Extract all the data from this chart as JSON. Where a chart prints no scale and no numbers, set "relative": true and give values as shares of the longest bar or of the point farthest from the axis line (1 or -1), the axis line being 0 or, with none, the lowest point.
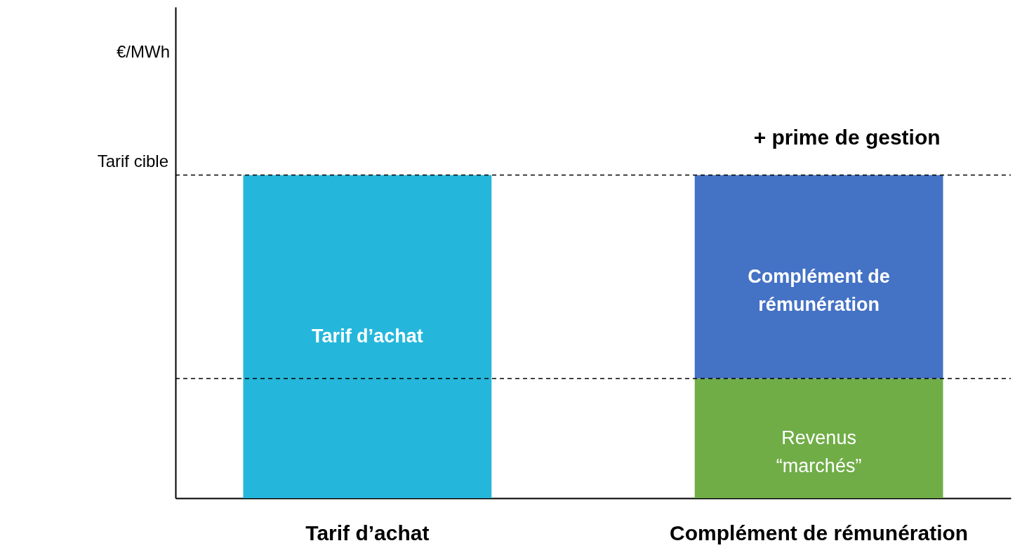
{
  "chart_data": {
    "type": "bar",
    "stacked": true,
    "relative": true,
    "categories": [
      "Tarif d’achat",
      "Complément de rémunération"
    ],
    "series": [
      {
        "name": "Tarif d’achat",
        "color": "#25b7db",
        "values": [
          1,
          null
        ]
      },
      {
        "name": "Revenus “marchés”",
        "color": "#70ad47",
        "values": [
          null,
          0.37
        ]
      },
      {
        "name": "Complément de rémunération",
        "color": "#4472c4",
        "values": [
          null,
          0.63
        ]
      }
    ],
    "ref_lines": [
      {
        "axis": "y",
        "value": 1,
        "label": "Tarif cible",
        "line_style": "dashed",
        "color": "#000000"
      },
      {
        "axis": "y",
        "value": 0.37,
        "line_style": "dashed",
        "color": "#000000"
      }
    ],
    "annotations": [
      "€/MWh",
      "+ prime de gestion"
    ]
  }
}
